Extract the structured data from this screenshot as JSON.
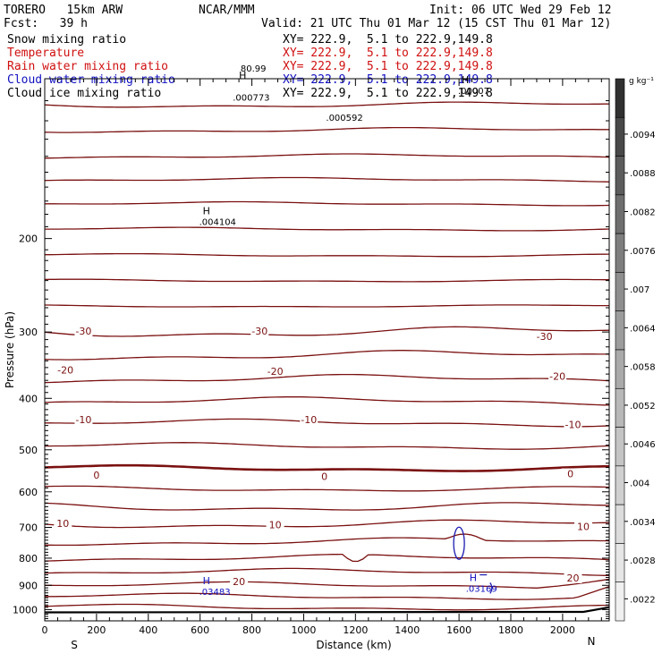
{
  "header": {
    "model": "TORERO   15km ARW",
    "center": "NCAR/MMM",
    "init": "Init: 06 UTC Wed 29 Feb 12",
    "fcst": "Fcst:   39 h",
    "valid": "Valid: 21 UTC Thu 01 Mar 12 (15 CST Thu 01 Mar 12)"
  },
  "fields": [
    {
      "name": "Snow mixing ratio",
      "xy": "XY= 222.9,  5.1 to 222.9,149.8",
      "color": "#000000"
    },
    {
      "name": "Temperature",
      "xy": "XY= 222.9,  5.1 to 222.9,149.8",
      "color": "#d01010"
    },
    {
      "name": "Rain water mixing ratio",
      "xy": "XY= 222.9,  5.1 to 222.9,149.8",
      "color": "#d01010"
    },
    {
      "name": "Cloud water mixing ratio",
      "xy": "XY= 222.9,  5.1 to 222.9,149.8",
      "color": "#1010c0"
    },
    {
      "name": "Cloud ice mixing ratio",
      "xy": "XY= 222.9,  5.1 to 222.9,149.8",
      "color": "#000000"
    }
  ],
  "chart_data": {
    "type": "contour cross-section",
    "xlabel": "Distance (km)",
    "ylabel": "Pressure (hPa)",
    "x_ticks": [
      0,
      200,
      400,
      600,
      800,
      1000,
      1200,
      1400,
      1600,
      1800,
      2000
    ],
    "y_ticks": [
      200,
      300,
      400,
      500,
      600,
      700,
      800,
      900,
      1000
    ],
    "xlim": [
      0,
      2180
    ],
    "ylim": [
      1050,
      100
    ],
    "x_end_labels": {
      "left": "S",
      "right": "N"
    },
    "colorbar": {
      "unit": "g kg⁻¹",
      "ticks": [
        ".0094",
        ".0088",
        ".0082",
        ".0076",
        ".007",
        ".0064",
        ".0058",
        ".0052",
        ".0046",
        ".004",
        ".0034",
        ".0028",
        ".0022"
      ],
      "grays_top_to_bottom": [
        "#303030",
        "#484848",
        "#5c5c5c",
        "#6e6e6e",
        "#7e7e7e",
        "#8e8e8e",
        "#9c9c9c",
        "#aaaaaa",
        "#b8b8b8",
        "#c4c4c4",
        "#d0d0d0",
        "#dcdcdc",
        "#e6e6e6",
        "#f0f0f0"
      ]
    },
    "temperature_contour_labels": [
      {
        "text": "-30",
        "x": 150,
        "p": 300
      },
      {
        "text": "-30",
        "x": 830,
        "p": 300
      },
      {
        "text": "-30",
        "x": 1930,
        "p": 307
      },
      {
        "text": "-20",
        "x": 80,
        "p": 355
      },
      {
        "text": "-20",
        "x": 890,
        "p": 357
      },
      {
        "text": "-20",
        "x": 1980,
        "p": 365
      },
      {
        "text": "-10",
        "x": 150,
        "p": 440
      },
      {
        "text": "-10",
        "x": 1020,
        "p": 440
      },
      {
        "text": "-10",
        "x": 2040,
        "p": 450
      },
      {
        "text": "0",
        "x": 200,
        "p": 560
      },
      {
        "text": "0",
        "x": 1080,
        "p": 563
      },
      {
        "text": "0",
        "x": 2030,
        "p": 557
      },
      {
        "text": "10",
        "x": 70,
        "p": 690
      },
      {
        "text": "10",
        "x": 890,
        "p": 695
      },
      {
        "text": "10",
        "x": 2080,
        "p": 700
      },
      {
        "text": "20",
        "x": 750,
        "p": 888
      },
      {
        "text": "20",
        "x": 2040,
        "p": 875
      }
    ],
    "maxima": [
      {
        "mark": "H",
        "value": "",
        "x": 750,
        "p": 100,
        "color": "#000000"
      },
      {
        "mark": "",
        "value": "80.99",
        "x": 770,
        "p": 97,
        "color": "#000000"
      },
      {
        "mark": "",
        "value": ".000773",
        "x": 740,
        "p": 110,
        "color": "#000000"
      },
      {
        "mark": "",
        "value": ".000592",
        "x": 1100,
        "p": 120,
        "color": "#000000"
      },
      {
        "mark": "H",
        "value": ".00007",
        "x": 1610,
        "p": 102,
        "color": "#000000"
      },
      {
        "mark": "H",
        "value": ".004104",
        "x": 610,
        "p": 180,
        "color": "#000000"
      },
      {
        "mark": "H",
        "value": ".03483",
        "x": 610,
        "p": 896,
        "color": "#1010c0"
      },
      {
        "mark": "H",
        "value": ".03169",
        "x": 1640,
        "p": 883,
        "color": "#1010c0"
      }
    ]
  }
}
